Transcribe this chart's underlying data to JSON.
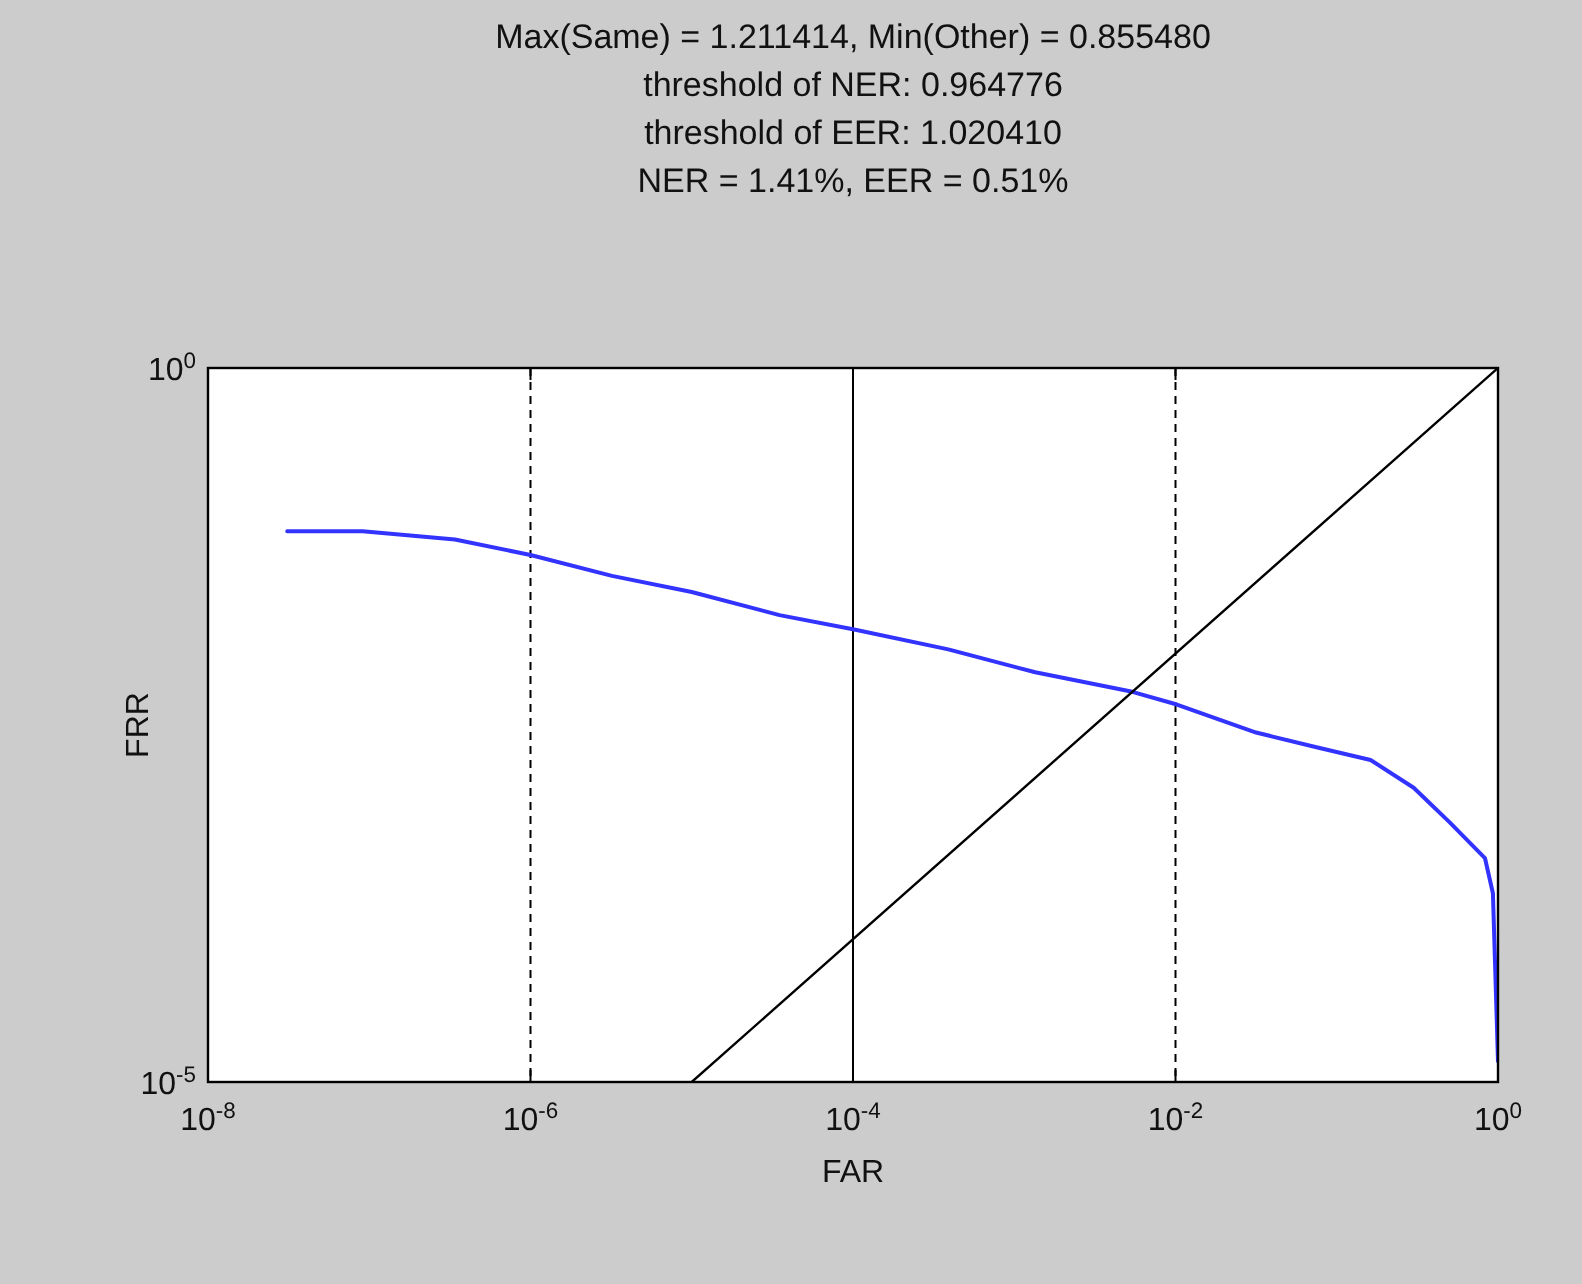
{
  "chart_data": {
    "type": "line",
    "title": "Max(Same) = 1.211414, Min(Other) = 0.855480\nthreshold of NER: 0.964776\nthreshold of EER: 1.020410\nNER = 1.41%, EER = 0.51%",
    "xlabel": "FAR",
    "ylabel": "FRR",
    "log": "xy",
    "grid": false,
    "line_style": "solid",
    "marker": "none",
    "xlim": [
      1e-08,
      1
    ],
    "ylim": [
      1e-05,
      1
    ],
    "xticks": [
      {
        "value": 1e-08,
        "label": "10$^{-8}$"
      },
      {
        "value": 1e-06,
        "label": "10$^{-6}$"
      },
      {
        "value": 0.0001,
        "label": "10$^{-4}$"
      },
      {
        "value": 0.01,
        "label": "10$^{-2}$"
      },
      {
        "value": 1,
        "label": "10$^{0}$"
      }
    ],
    "yticks": [
      {
        "value": 1e-05,
        "label": "10$^{-5}$"
      },
      {
        "value": 1,
        "label": "10$^{0}$"
      }
    ],
    "ref_lines": [
      {
        "axis": "x",
        "value": 1e-06,
        "color": "#000000",
        "line_style": "dashed"
      },
      {
        "axis": "x",
        "value": 0.0001,
        "color": "#000000",
        "line_style": "solid"
      },
      {
        "axis": "x",
        "value": 0.01,
        "color": "#000000",
        "line_style": "dashed"
      }
    ],
    "series": [
      {
        "color": "#3333ff",
        "x": [
          3.1e-08,
          9.1e-08,
          3.4e-07,
          1e-06,
          3.2e-06,
          1e-05,
          3.5e-05,
          0.0001,
          0.00039,
          0.00135,
          0.0054,
          0.0102,
          0.0316,
          0.076,
          0.162,
          0.3,
          0.5,
          0.83,
          0.93,
          1
        ],
        "values": [
          0.072,
          0.072,
          0.063,
          0.049,
          0.035,
          0.027,
          0.0186,
          0.0148,
          0.0107,
          0.0074,
          0.0054,
          0.0044,
          0.0028,
          0.0022,
          0.0018,
          0.00115,
          0.00066,
          0.00037,
          0.00021,
          1.4e-05
        ]
      },
      {
        "color": "#000000",
        "x": [
          1e-05,
          1
        ],
        "values": [
          1e-05,
          1
        ]
      }
    ]
  }
}
